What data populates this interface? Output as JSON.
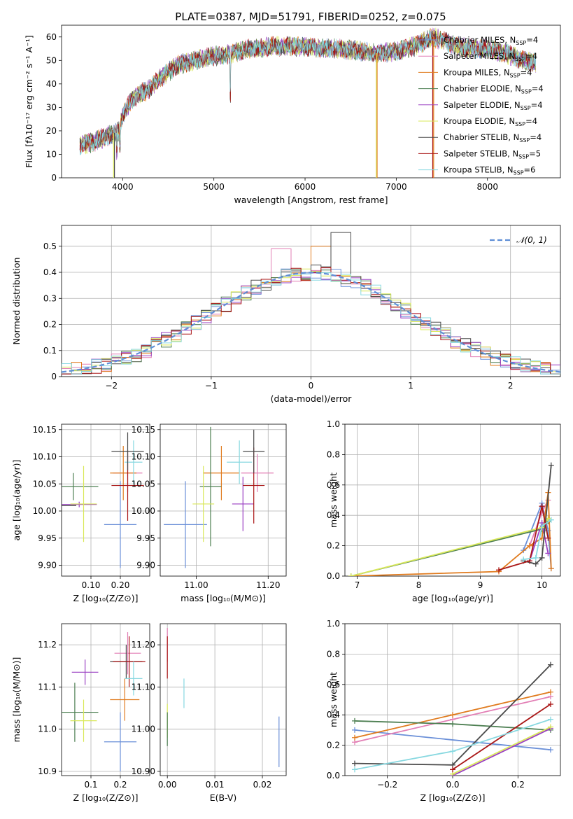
{
  "figure": {
    "title": "PLATE=0387, MJD=51791, FIBERID=0252, z=0.075"
  },
  "colors": {
    "Chabrier MILES": "#6a8fd8",
    "Salpeter MILES": "#e27fb5",
    "Kroupa MILES": "#e07b1e",
    "Chabrier ELODIE": "#4d7f52",
    "Salpeter ELODIE": "#9a3fc2",
    "Kroupa ELODIE": "#d9e85a",
    "Chabrier STELIB": "#4a4a4a",
    "Salpeter STELIB": "#aa1616",
    "Kroupa STELIB": "#87d8e0"
  },
  "chart_data": [
    {
      "panel": "spectrum",
      "type": "line",
      "xlabel": "wavelength [Angstrom, rest frame]",
      "ylabel": "Flux [fλ10⁻¹⁷ erg cm⁻² s⁻¹ A⁻¹]",
      "xlim": [
        3330,
        8800
      ],
      "ylim": [
        0,
        65
      ],
      "xticks": [
        4000,
        5000,
        6000,
        7000,
        8000
      ],
      "yticks": [
        0,
        10,
        20,
        30,
        40,
        50,
        60
      ],
      "grid": false,
      "legend_position": "right",
      "legend": [
        {
          "label": "Chabrier MILES, N",
          "sub": "SSP",
          "value": "=4"
        },
        {
          "label": "Salpeter MILES, N",
          "sub": "SSP",
          "value": "=4"
        },
        {
          "label": "Kroupa MILES, N",
          "sub": "SSP",
          "value": "=4"
        },
        {
          "label": "Chabrier ELODIE, N",
          "sub": "SSP",
          "value": "=4"
        },
        {
          "label": "Salpeter ELODIE, N",
          "sub": "SSP",
          "value": "=4"
        },
        {
          "label": "Kroupa ELODIE, N",
          "sub": "SSP",
          "value": "=4"
        },
        {
          "label": "Chabrier STELIB, N",
          "sub": "SSP",
          "value": "=4"
        },
        {
          "label": "Salpeter STELIB, N",
          "sub": "SSP",
          "value": "=5"
        },
        {
          "label": "Kroupa STELIB, N",
          "sub": "SSP",
          "value": "=6"
        }
      ],
      "continuum": [
        [
          3530,
          14
        ],
        [
          3650,
          15
        ],
        [
          3800,
          17
        ],
        [
          3900,
          19
        ],
        [
          3960,
          20
        ],
        [
          4000,
          27
        ],
        [
          4100,
          33
        ],
        [
          4200,
          36
        ],
        [
          4300,
          38
        ],
        [
          4400,
          42
        ],
        [
          4500,
          45
        ],
        [
          4600,
          48
        ],
        [
          4700,
          49
        ],
        [
          4800,
          50
        ],
        [
          4900,
          51
        ],
        [
          5000,
          52
        ],
        [
          5100,
          52
        ],
        [
          5200,
          53
        ],
        [
          5300,
          54
        ],
        [
          5400,
          55
        ],
        [
          5500,
          55
        ],
        [
          5600,
          56
        ],
        [
          5700,
          56
        ],
        [
          5800,
          56
        ],
        [
          6000,
          56
        ],
        [
          6200,
          55
        ],
        [
          6400,
          55
        ],
        [
          6600,
          54
        ],
        [
          6800,
          53
        ],
        [
          7000,
          54
        ],
        [
          7200,
          56
        ],
        [
          7400,
          60
        ],
        [
          7600,
          57
        ],
        [
          7800,
          55
        ],
        [
          8000,
          55
        ],
        [
          8200,
          53
        ],
        [
          8400,
          50
        ],
        [
          8530,
          49
        ]
      ],
      "drops": [
        {
          "series": "Kroupa ELODIE",
          "x": 3900
        },
        {
          "series": "Chabrier STELIB",
          "x": 3910
        },
        {
          "series": "Kroupa MILES",
          "x": 6790
        },
        {
          "series": "Kroupa ELODIE",
          "x": 6780
        },
        {
          "series": "Salpeter STELIB",
          "x": 7400
        },
        {
          "series": "Kroupa MILES",
          "x": 7410
        }
      ]
    },
    {
      "panel": "residual-histogram",
      "type": "bar",
      "xlabel": "(data-model)/error",
      "ylabel": "Normed distribution",
      "xlim": [
        -2.5,
        2.5
      ],
      "ylim": [
        0,
        0.58
      ],
      "xticks": [
        -2,
        -1,
        0,
        1,
        2
      ],
      "yticks": [
        0.0,
        0.1,
        0.2,
        0.3,
        0.4,
        0.5
      ],
      "grid": true,
      "bin_width": 0.1,
      "legend": [
        {
          "label": "𝒩(0, 1)",
          "style": "dashed"
        }
      ],
      "highlighted_bins": [
        {
          "x": 0.3,
          "value": 0.553
        },
        {
          "x": 0.1,
          "value": 0.5
        },
        {
          "x": -0.3,
          "value": 0.49
        }
      ]
    },
    {
      "panel": "age-vs-Z",
      "type": "scatter",
      "xlabel": "Z [log₁₀(Z/Z⊙)]",
      "ylabel": "age  [log₁₀(age/yr)]",
      "xlim": [
        0.0,
        0.3
      ],
      "ylim": [
        9.88,
        10.16
      ],
      "xticks": [
        0.1,
        0.2
      ],
      "yticks": [
        9.9,
        9.95,
        10.0,
        10.05,
        10.1,
        10.15
      ],
      "points": [
        {
          "series": "Chabrier MILES",
          "x": 0.2,
          "y": 9.975,
          "xerr": 0.055,
          "yerr": 0.08
        },
        {
          "series": "Salpeter MILES",
          "x": 0.225,
          "y": 10.07,
          "xerr": 0.05,
          "yerr": 0.035
        },
        {
          "series": "Kroupa MILES",
          "x": 0.21,
          "y": 10.07,
          "xerr": 0.045,
          "yerr": 0.05
        },
        {
          "series": "Chabrier ELODIE",
          "x": 0.04,
          "y": 10.045,
          "xerr": 0.085,
          "yerr": 0.025
        },
        {
          "series": "Salpeter ELODIE",
          "x": 0.06,
          "y": 10.012,
          "xerr": 0.06,
          "yerr": 0.0
        },
        {
          "series": "Kroupa ELODIE",
          "x": 0.075,
          "y": 10.013,
          "xerr": 0.045,
          "yerr": 0.07
        },
        {
          "series": "Chabrier STELIB",
          "x": 0.0,
          "y": 10.01,
          "xerr": 0.05,
          "yerr": 0.075
        },
        {
          "series": "Salpeter STELIB",
          "x": 0.225,
          "y": 10.047,
          "xerr": 0.055,
          "yerr": 0.065
        },
        {
          "series": "Kroupa STELIB",
          "x": 0.245,
          "y": 10.09,
          "xerr": 0.03,
          "yerr": 0.04
        },
        {
          "series": "Chabrier STELIB",
          "x": 0.225,
          "y": 10.11,
          "xerr": 0.055,
          "yerr": 0.035
        }
      ]
    },
    {
      "panel": "age-vs-mass",
      "type": "scatter",
      "xlabel": "mass [log₁₀(M/M⊙)]",
      "ylabel": "",
      "xlim": [
        10.9,
        11.25
      ],
      "ylim": [
        9.88,
        10.16
      ],
      "xticks": [
        11.0,
        11.2
      ],
      "yticks": [
        9.9,
        9.95,
        10.0,
        10.05,
        10.1,
        10.15
      ],
      "points": [
        {
          "series": "Chabrier MILES",
          "x": 10.97,
          "y": 9.975,
          "xerr": 0.06,
          "yerr": 0.08
        },
        {
          "series": "Salpeter MILES",
          "x": 11.17,
          "y": 10.07,
          "xerr": 0.045,
          "yerr": 0.035
        },
        {
          "series": "Kroupa MILES",
          "x": 11.07,
          "y": 10.07,
          "xerr": 0.05,
          "yerr": 0.05
        },
        {
          "series": "Chabrier ELODIE",
          "x": 11.04,
          "y": 10.045,
          "xerr": 0.03,
          "yerr": 0.11
        },
        {
          "series": "Salpeter ELODIE",
          "x": 11.13,
          "y": 10.013,
          "xerr": 0.03,
          "yerr": 0.05
        },
        {
          "series": "Kroupa ELODIE",
          "x": 11.02,
          "y": 10.013,
          "xerr": 0.03,
          "yerr": 0.07
        },
        {
          "series": "Salpeter STELIB",
          "x": 11.16,
          "y": 10.047,
          "xerr": 0.03,
          "yerr": 0.07
        },
        {
          "series": "Kroupa STELIB",
          "x": 11.12,
          "y": 10.09,
          "xerr": 0.035,
          "yerr": 0.04
        },
        {
          "series": "Chabrier STELIB",
          "x": 11.16,
          "y": 10.11,
          "xerr": 0.03,
          "yerr": 0.04
        }
      ]
    },
    {
      "panel": "mass-weight-vs-age",
      "type": "line",
      "xlabel": "age  [log₁₀(age/yr)]",
      "ylabel": "mass weight",
      "xlim": [
        6.8,
        10.3
      ],
      "ylim": [
        0.0,
        1.0
      ],
      "xticks": [
        7,
        8,
        9,
        10
      ],
      "yticks": [
        0.0,
        0.2,
        0.4,
        0.6,
        0.8,
        1.0
      ],
      "grid": true,
      "series": [
        {
          "name": "Chabrier MILES",
          "x": [
            9.7,
            10.0,
            10.1,
            10.15
          ],
          "y": [
            0.17,
            0.48,
            0.3,
            0.05
          ]
        },
        {
          "name": "Salpeter MILES",
          "x": [
            9.8,
            10.0,
            10.1
          ],
          "y": [
            0.2,
            0.42,
            0.5
          ]
        },
        {
          "name": "Kroupa MILES",
          "x": [
            6.9,
            9.3,
            9.8,
            10.0,
            10.1,
            10.15
          ],
          "y": [
            0.0,
            0.03,
            0.2,
            0.25,
            0.55,
            0.05
          ]
        },
        {
          "name": "Chabrier ELODIE",
          "x": [
            6.9,
            10.0,
            10.1
          ],
          "y": [
            0.0,
            0.31,
            0.36
          ]
        },
        {
          "name": "Salpeter ELODIE",
          "x": [
            9.8,
            10.0,
            10.1
          ],
          "y": [
            0.1,
            0.35,
            0.15
          ]
        },
        {
          "name": "Kroupa ELODIE",
          "x": [
            6.9,
            10.0,
            10.1
          ],
          "y": [
            0.0,
            0.32,
            0.38
          ]
        },
        {
          "name": "Chabrier STELIB",
          "x": [
            9.7,
            9.9,
            10.0,
            10.15
          ],
          "y": [
            0.1,
            0.08,
            0.12,
            0.73
          ]
        },
        {
          "name": "Salpeter STELIB",
          "x": [
            9.3,
            9.8,
            10.0,
            10.1
          ],
          "y": [
            0.04,
            0.1,
            0.46,
            0.25
          ]
        },
        {
          "name": "Kroupa STELIB",
          "x": [
            9.7,
            9.9,
            10.0,
            10.15
          ],
          "y": [
            0.11,
            0.12,
            0.33,
            0.37
          ]
        }
      ]
    },
    {
      "panel": "mass-vs-Z",
      "type": "scatter",
      "xlabel": "Z [log₁₀(Z/Z⊙)]",
      "ylabel": "mass [log₁₀(M/M⊙)]",
      "xlim": [
        0.0,
        0.3
      ],
      "ylim": [
        10.89,
        11.25
      ],
      "xticks": [
        0.1,
        0.2
      ],
      "yticks": [
        10.9,
        11.0,
        11.1,
        11.2
      ],
      "points": [
        {
          "series": "Chabrier MILES",
          "x": 0.2,
          "y": 10.97,
          "xerr": 0.055,
          "yerr": 0.07
        },
        {
          "series": "Salpeter MILES",
          "x": 0.225,
          "y": 11.18,
          "xerr": 0.045,
          "yerr": 0.05
        },
        {
          "series": "Kroupa MILES",
          "x": 0.215,
          "y": 11.07,
          "xerr": 0.05,
          "yerr": 0.05
        },
        {
          "series": "Chabrier ELODIE",
          "x": 0.045,
          "y": 11.04,
          "xerr": 0.08,
          "yerr": 0.07
        },
        {
          "series": "Salpeter ELODIE",
          "x": 0.08,
          "y": 11.135,
          "xerr": 0.045,
          "yerr": 0.03
        },
        {
          "series": "Kroupa ELODIE",
          "x": 0.075,
          "y": 11.02,
          "xerr": 0.045,
          "yerr": 0.05
        },
        {
          "series": "Chabrier STELIB",
          "x": 0.22,
          "y": 11.16,
          "xerr": 0.055,
          "yerr": 0.04
        },
        {
          "series": "Salpeter STELIB",
          "x": 0.23,
          "y": 11.16,
          "xerr": 0.055,
          "yerr": 0.06
        },
        {
          "series": "Kroupa STELIB",
          "x": 0.245,
          "y": 11.12,
          "xerr": 0.03,
          "yerr": 0.04
        }
      ]
    },
    {
      "panel": "mass-vs-EBV",
      "type": "scatter",
      "xlabel": "E(B-V)",
      "ylabel": "",
      "xlim": [
        -0.0015,
        0.025
      ],
      "ylim": [
        10.89,
        11.25
      ],
      "xticks": [
        0.0,
        0.01,
        0.02
      ],
      "yticks": [
        10.9,
        11.0,
        11.1,
        11.2
      ],
      "points": [
        {
          "series": "Chabrier MILES",
          "x": 0.0235,
          "y": 10.97,
          "yerr": 0.06
        },
        {
          "series": "Salpeter MILES",
          "x": 0.0,
          "y": 11.2,
          "yerr": 0.04
        },
        {
          "series": "Kroupa STELIB",
          "x": 0.0035,
          "y": 11.085,
          "yerr": 0.035
        },
        {
          "series": "Kroupa ELODIE",
          "x": 0.0,
          "y": 11.02,
          "yerr": 0.04
        },
        {
          "series": "Salpeter STELIB",
          "x": 0.0,
          "y": 11.17,
          "yerr": 0.05
        },
        {
          "series": "Chabrier ELODIE",
          "x": 0.0,
          "y": 11.0,
          "yerr": 0.04
        }
      ]
    },
    {
      "panel": "mass-weight-vs-Z",
      "type": "line",
      "xlabel": "Z [log₁₀(Z/Z⊙)]",
      "ylabel": "mass weight",
      "xlim": [
        -0.33,
        0.33
      ],
      "ylim": [
        0.0,
        1.0
      ],
      "xticks": [
        -0.2,
        0.0,
        0.2
      ],
      "yticks": [
        0.0,
        0.2,
        0.4,
        0.6,
        0.8,
        1.0
      ],
      "grid": true,
      "series": [
        {
          "name": "Chabrier MILES",
          "x": [
            -0.3,
            0.3
          ],
          "y": [
            0.3,
            0.17
          ]
        },
        {
          "name": "Salpeter MILES",
          "x": [
            -0.3,
            0.0,
            0.3
          ],
          "y": [
            0.22,
            0.37,
            0.52
          ]
        },
        {
          "name": "Kroupa MILES",
          "x": [
            -0.3,
            0.0,
            0.3
          ],
          "y": [
            0.25,
            0.4,
            0.55
          ]
        },
        {
          "name": "Chabrier ELODIE",
          "x": [
            -0.3,
            0.0,
            0.3
          ],
          "y": [
            0.36,
            0.34,
            0.3
          ]
        },
        {
          "name": "Salpeter ELODIE",
          "x": [
            0.0,
            0.3
          ],
          "y": [
            0.0,
            0.31
          ]
        },
        {
          "name": "Kroupa ELODIE",
          "x": [
            0.0,
            0.3
          ],
          "y": [
            0.01,
            0.32
          ]
        },
        {
          "name": "Chabrier STELIB",
          "x": [
            -0.3,
            0.0,
            0.3
          ],
          "y": [
            0.08,
            0.07,
            0.73
          ]
        },
        {
          "name": "Salpeter STELIB",
          "x": [
            0.0,
            0.3
          ],
          "y": [
            0.04,
            0.47
          ]
        },
        {
          "name": "Kroupa STELIB",
          "x": [
            -0.3,
            0.0,
            0.3
          ],
          "y": [
            0.04,
            0.16,
            0.37
          ]
        }
      ]
    }
  ]
}
